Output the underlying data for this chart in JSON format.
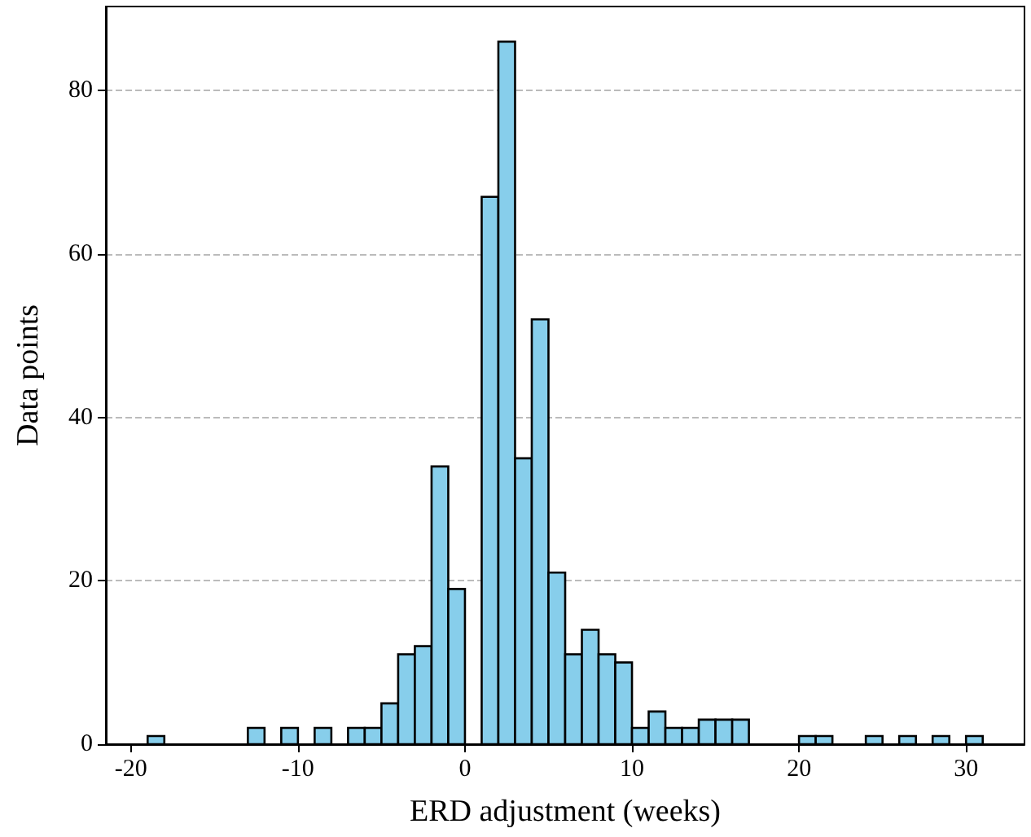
{
  "chart_data": {
    "type": "histogram",
    "xlabel": "ERD adjustment (weeks)",
    "ylabel": "Data points",
    "bins": [
      -19,
      -18,
      -17,
      -16,
      -15,
      -14,
      -13,
      -12,
      -11,
      -10,
      -9,
      -8,
      -7,
      -6,
      -5,
      -4,
      -3,
      -2,
      -1,
      0,
      1,
      2,
      3,
      4,
      5,
      6,
      7,
      8,
      9,
      10,
      11,
      12,
      13,
      14,
      15,
      16,
      17,
      18,
      19,
      20,
      21,
      22,
      23,
      24,
      25,
      26,
      27,
      28,
      29,
      30,
      31
    ],
    "values": [
      1,
      0,
      0,
      0,
      0,
      0,
      2,
      0,
      2,
      0,
      2,
      0,
      2,
      2,
      5,
      11,
      12,
      34,
      19,
      0,
      67,
      86,
      35,
      52,
      21,
      11,
      14,
      11,
      10,
      2,
      4,
      2,
      2,
      3,
      3,
      3,
      0,
      0,
      0,
      1,
      1,
      0,
      0,
      1,
      0,
      1,
      0,
      1,
      0,
      1
    ],
    "color": "#87ceeb",
    "xlim": [
      -21.5,
      33.5
    ],
    "ylim": [
      0,
      90.3
    ],
    "xticks": [
      -20,
      -10,
      0,
      10,
      20,
      30
    ],
    "yticks": [
      0,
      20,
      40,
      60,
      80
    ],
    "grid": "y"
  }
}
